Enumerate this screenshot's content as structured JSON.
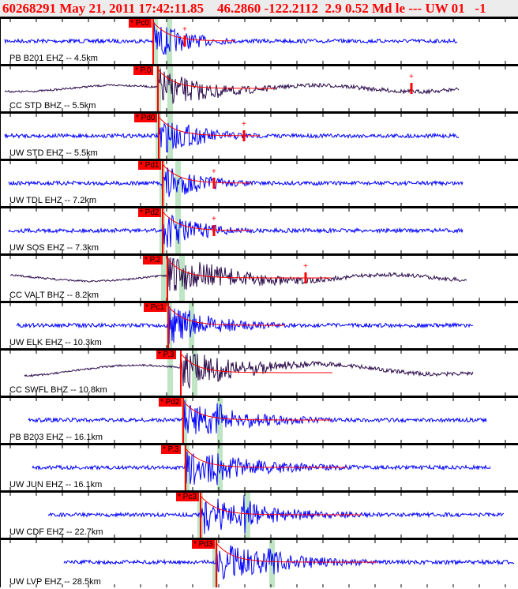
{
  "header": {
    "title": "60268291 May 21, 2011 17:42:11.85    46.2860 -122.2112  2.9 0.52 Md le --- UW 01   -1"
  },
  "colors": {
    "ehz": "#0000ff",
    "bhz": "#2a0a4a",
    "pick": "#ff0000",
    "band": "#bfe5c4"
  },
  "traces": [
    {
      "label": "PB B201 EHZ -- 4.5km",
      "pick": "* Pc0",
      "type": "ehz"
    },
    {
      "label": "CC STD BHZ -- 5.5km",
      "pick": "* P.0",
      "type": "bhz"
    },
    {
      "label": "UW STD EHZ -- 5.5km",
      "pick": "* Pd0",
      "type": "ehz"
    },
    {
      "label": "UW TDL EHZ -- 7.2km",
      "pick": "* Pd1",
      "type": "ehz"
    },
    {
      "label": "UW SOS EHZ -- 7.3km",
      "pick": "* Pd2",
      "type": "ehz"
    },
    {
      "label": "CC VALT BHZ -- 8.2km",
      "pick": "* P.2",
      "type": "bhz"
    },
    {
      "label": "UW ELK EHZ -- 10.3km",
      "pick": "* Pc1",
      "type": "ehz"
    },
    {
      "label": "CC SWFL BHZ -- 10.8km",
      "pick": "* P.3",
      "type": "bhz"
    },
    {
      "label": "PB B203 EHZ -- 16.1km",
      "pick": "* Pd2",
      "type": "ehz"
    },
    {
      "label": "UW JUN EHZ -- 16.1km",
      "pick": "* P.3",
      "type": "ehz"
    },
    {
      "label": "UW CDF EHZ -- 22.7km",
      "pick": "* Pc3",
      "type": "ehz"
    },
    {
      "label": "UW LVP EHZ -- 28.5km",
      "pick": "* Pd3",
      "type": "ehz"
    }
  ]
}
